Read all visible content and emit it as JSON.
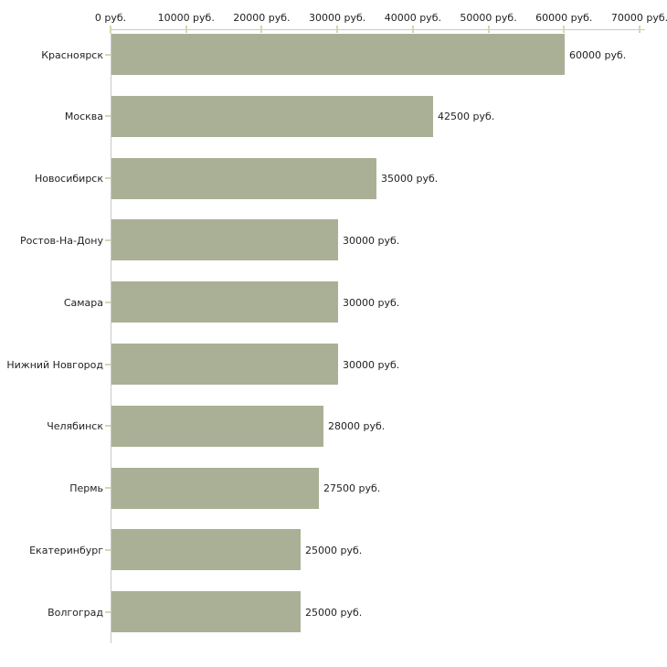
{
  "chart_data": {
    "type": "bar",
    "orientation": "horizontal",
    "title": "",
    "xlabel": "",
    "ylabel": "",
    "unit": "руб.",
    "xlim": [
      0,
      70000
    ],
    "x_tick_step": 10000,
    "grid": false,
    "legend": false,
    "categories": [
      "Красноярск",
      "Москва",
      "Новосибирск",
      "Ростов-На-Дону",
      "Самара",
      "Нижний Новгород",
      "Челябинск",
      "Пермь",
      "Екатеринбург",
      "Волгоград"
    ],
    "values": [
      60000,
      42500,
      35000,
      30000,
      30000,
      30000,
      28000,
      27500,
      25000,
      25000
    ],
    "value_labels": [
      "60000 руб.",
      "42500 руб.",
      "35000 руб.",
      "30000 руб.",
      "30000 руб.",
      "30000 руб.",
      "28000 руб.",
      "27500 руб.",
      "25000 руб.",
      "25000 руб."
    ],
    "x_tick_labels": [
      "0 руб.",
      "10000 руб.",
      "20000 руб.",
      "30000 руб.",
      "40000 руб.",
      "50000 руб.",
      "60000 руб.",
      "70000 руб."
    ],
    "colors": {
      "bar": "#aab096",
      "tick": "#d5d8ab",
      "axis": "#c9c9c9",
      "text": "#222222",
      "background": "#ffffff"
    }
  }
}
